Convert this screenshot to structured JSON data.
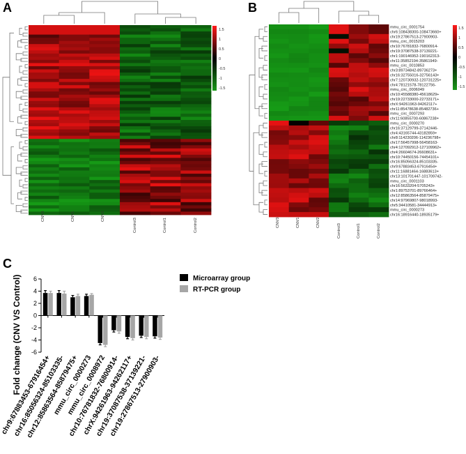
{
  "panels": {
    "a": "A",
    "b": "B",
    "c": "C"
  },
  "heatmap_a": {
    "columns": [
      "CNV3",
      "CNV1",
      "CNV2",
      "Control3",
      "Control1",
      "Control2"
    ],
    "colorbar_ticks": [
      "1.5",
      "1",
      "0.5",
      "0",
      "-0.5",
      "-1",
      "-1.5"
    ],
    "colors": {
      "high": "#e31a1c",
      "mid": "#000000",
      "low": "#1a9a1a"
    }
  },
  "heatmap_b": {
    "columns": [
      "CNV3",
      "CNV1",
      "CNV2",
      "Control3",
      "Control1",
      "Control2"
    ],
    "rows": [
      "mmu_circ_0001754",
      "chr6:108438300-108473660+",
      "chr19:27867513-27900903-",
      "mmu_circ_0015203",
      "chr10:76781832-76800914-",
      "chr19:37087538-37139221-",
      "chr1:190146952-190162313-",
      "chr11:35852194-35861949-",
      "mmu_circ_0010853",
      "chr3:89734842-89736273+",
      "chr16:32755016-32756143+",
      "chr7:120730932-120731225+",
      "chr4:78121578-78122756-",
      "mmu_circ_0006049",
      "chr10:45588380-45618629+",
      "chr19:22733000-22733171+",
      "chrX:94261963-94262117+",
      "chr11:85478638-85482736+",
      "mmu_circ_0007293",
      "chr11:60855700-60867238+",
      "mmu_circ_0000270",
      "chr16:37129799-37142446-",
      "chr4:43165744-43182859+",
      "chr8:114230206-114236798+",
      "chr17:56457998-56458163-",
      "chr4:127092912-127109962+",
      "chr4:26604674-26608631+",
      "chr10:74450156-74454101+",
      "chr16:85056324-85103335-",
      "chr9:67883453-67916454+",
      "chr11:16881464-16883613+",
      "chr13:101701447-101709742-",
      "mmu_circ_0001103",
      "chr16:5633204-5705243+",
      "chr1:89753701-89766464+",
      "chr12:85863564-85879475+",
      "chr14:97969807-98018993-",
      "chr5:34410581-34444913+",
      "mmu_circ_0000273",
      "chr16:18916440-18935179+"
    ],
    "colorbar_ticks": [
      "1.5",
      "1",
      "0.5",
      "0",
      "-0.5",
      "-1",
      "-1.5"
    ]
  },
  "chart_data": {
    "type": "bar",
    "title": "",
    "ylabel": "Fold  change (CNV VS Control)",
    "xlabel": "",
    "ylim": [
      -6,
      6
    ],
    "yticks": [
      6,
      4,
      2,
      0,
      -2,
      -4,
      -6
    ],
    "categories": [
      "chr9:67883453-67916454+",
      "chr16:85056324-85103335-",
      "chr12:85863564-85879475+",
      "mmu_circ_0000273",
      "mmu_circ_0008972",
      "chr10:76781832-76800914-",
      "chrX:94261963-94262117+",
      "chr19:37087538-37139221-",
      "chr19:27867513-27900903-"
    ],
    "series": [
      {
        "name": "Microarray group",
        "color": "#000000",
        "values": [
          3.7,
          3.7,
          3.0,
          3.2,
          -4.5,
          -2.4,
          -3.5,
          -3.3,
          -3.4
        ],
        "errors": [
          0.4,
          0.4,
          0.3,
          0.3,
          0.3,
          0.3,
          0.3,
          0.3,
          0.3
        ]
      },
      {
        "name": "RT-PCR group",
        "color": "#a6a6a6",
        "values": [
          3.7,
          3.6,
          3.2,
          3.4,
          -4.8,
          -2.6,
          -3.7,
          -3.5,
          -3.6
        ],
        "errors": [
          0.3,
          0.4,
          0.3,
          0.2,
          0.3,
          0.3,
          0.3,
          0.3,
          0.3
        ]
      }
    ],
    "legend": "top-right"
  }
}
